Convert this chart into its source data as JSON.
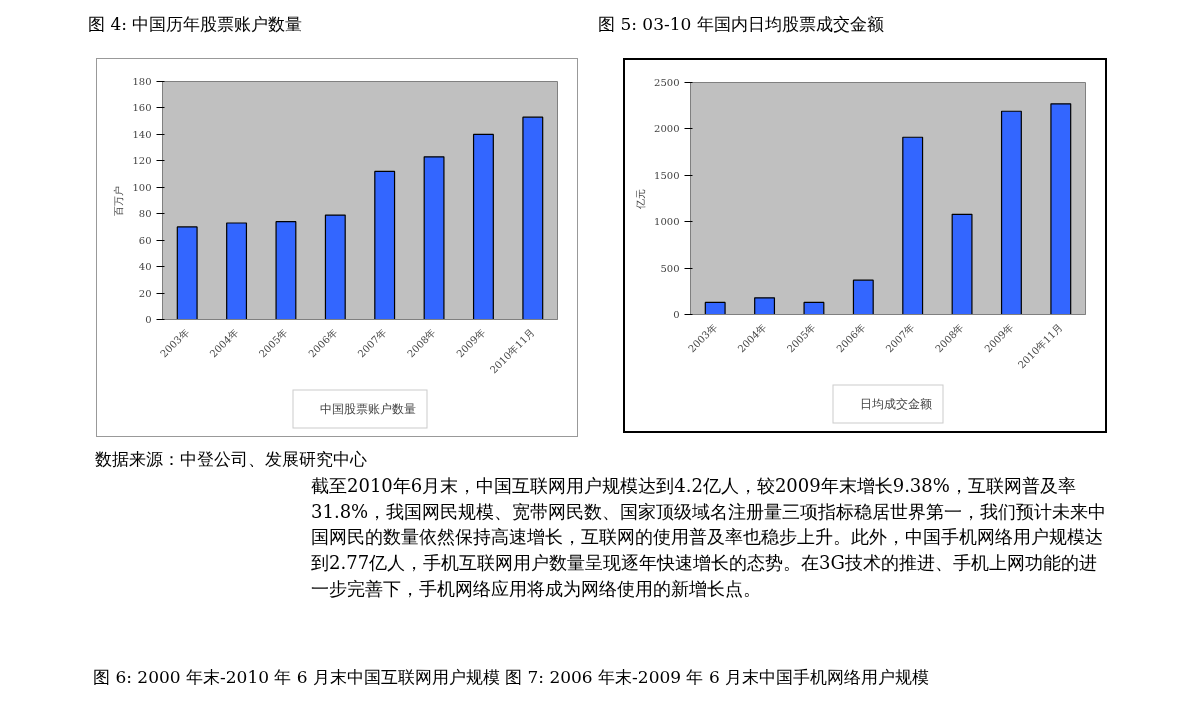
{
  "chart_data": [
    {
      "type": "bar",
      "title": "图 4: 中国历年股票账户数量",
      "ylabel": "百万户",
      "categories": [
        "2003年",
        "2004年",
        "2005年",
        "2006年",
        "2007年",
        "2008年",
        "2009年",
        "2010年11月"
      ],
      "series": [
        {
          "name": "中国股票账户数量",
          "color": "#3366ff",
          "values": [
            70,
            73,
            74,
            79,
            112,
            123,
            140,
            153
          ]
        }
      ],
      "ylim": [
        0,
        180
      ],
      "yticks": [
        0,
        20,
        40,
        60,
        80,
        100,
        120,
        140,
        160,
        180
      ],
      "grid": false,
      "legend": "bottom",
      "annotations": [
        "数据来源：中登公司、发展研究中心"
      ]
    },
    {
      "type": "bar",
      "title": "图 5: 03-10 年国内日均股票成交金额",
      "ylabel": "亿元",
      "categories": [
        "2003年",
        "2004年",
        "2005年",
        "2006年",
        "2007年",
        "2008年",
        "2009年",
        "2010年11月"
      ],
      "series": [
        {
          "name": "日均成交金额",
          "color": "#3366ff",
          "values": [
            130,
            180,
            130,
            370,
            1910,
            1080,
            2190,
            2270
          ]
        }
      ],
      "ylim": [
        0,
        2500
      ],
      "yticks": [
        0,
        500,
        1000,
        1500,
        2000,
        2500
      ],
      "grid": false,
      "legend": "bottom"
    },
    {
      "type": "other",
      "annotations": [
        "截至2010年6月末，中国互联网用户规模达到4.2亿人，较2009年末增长9.38%，互联网普及率31.8%，我国网民规模、宽带网民数、国家顶级域名注册量三项指标稳居世界第一，我们预计未来中国网民的数量依然保持高速增长，互联网的使用普及率也稳步上升。此外，中国手机网络用户规模达到2.77亿人，手机互联网用户数量呈现逐年快速增长的态势。在3G技术的推进、手机上网功能的进一步完善下，手机网络应用将成为网络使用的新增长点。",
        "图 6: 2000 年末-2010 年 6 月末中国互联网用户规模",
        "图 7: 2006 年末-2009 年 6 月末中国手机网络用户规模"
      ]
    }
  ]
}
